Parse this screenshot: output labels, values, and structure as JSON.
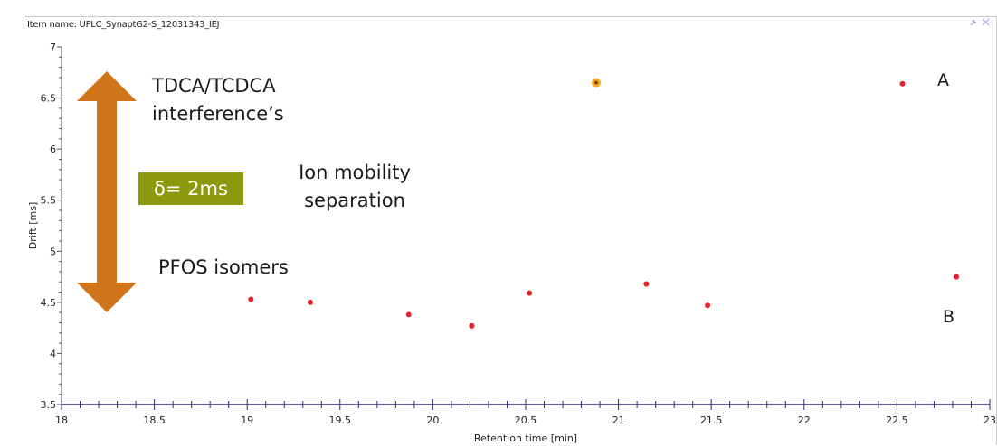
{
  "window": {
    "item_name": "Item name: UPLC_SynaptG2-S_12031343_IEJ"
  },
  "annotations": {
    "tdca_line1": "TDCA/TCDCA",
    "tdca_line2": "interference’s",
    "ion_line1": "Ion mobility",
    "ion_line2": "separation",
    "pfos": "PFOS isomers",
    "delta": "δ= 2ms",
    "label_a": "A",
    "label_b": "B"
  },
  "colors": {
    "arrow": "#cf7418",
    "delta_box": "#8a9a0c",
    "point": "#e8202a",
    "highlight_point": "#f5a623",
    "axis": "#2a2a6e"
  },
  "chart_data": {
    "type": "scatter",
    "xlabel": "Retention time [min]",
    "ylabel": "Drift [ms]",
    "xlim": [
      18,
      23
    ],
    "ylim": [
      3.5,
      7
    ],
    "xticks": [
      "18",
      "18.5",
      "19",
      "19.5",
      "20",
      "20.5",
      "21",
      "21.5",
      "22",
      "22.5",
      "23"
    ],
    "yticks": [
      "3.5",
      "4",
      "4.5",
      "5",
      "5.5",
      "6",
      "6.5",
      "7"
    ],
    "grid": false,
    "series": [
      {
        "points": [
          {
            "x": 19.02,
            "y": 4.53
          },
          {
            "x": 19.34,
            "y": 4.5
          },
          {
            "x": 19.87,
            "y": 4.38
          },
          {
            "x": 20.21,
            "y": 4.27
          },
          {
            "x": 20.52,
            "y": 4.59
          },
          {
            "x": 21.15,
            "y": 4.68
          },
          {
            "x": 21.48,
            "y": 4.47
          },
          {
            "x": 22.82,
            "y": 4.75
          },
          {
            "x": 22.53,
            "y": 6.64
          }
        ]
      },
      {
        "highlighted": true,
        "points": [
          {
            "x": 20.88,
            "y": 6.65
          }
        ]
      }
    ]
  }
}
